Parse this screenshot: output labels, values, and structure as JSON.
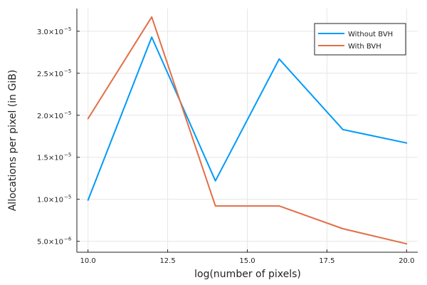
{
  "chart_data": {
    "type": "line",
    "title": "",
    "xlabel": "log(number of pixels)",
    "ylabel": "Allocations per pixel (in GiB)",
    "xlim": [
      9.65,
      20.35
    ],
    "ylim": [
      3.7e-06,
      3.27e-05
    ],
    "grid": true,
    "legend_position": "top-right",
    "x": [
      10,
      12,
      14,
      16,
      18,
      20
    ],
    "xticks": [
      {
        "value": 10.0,
        "label": "10.0"
      },
      {
        "value": 12.5,
        "label": "12.5"
      },
      {
        "value": 15.0,
        "label": "15.0"
      },
      {
        "value": 17.5,
        "label": "17.5"
      },
      {
        "value": 20.0,
        "label": "20.0"
      }
    ],
    "yticks": [
      {
        "value": 5e-06,
        "mantissa": "5.0×10",
        "exp": "−6"
      },
      {
        "value": 1e-05,
        "mantissa": "1.0×10",
        "exp": "−5"
      },
      {
        "value": 1.5e-05,
        "mantissa": "1.5×10",
        "exp": "−5"
      },
      {
        "value": 2e-05,
        "mantissa": "2.0×10",
        "exp": "−5"
      },
      {
        "value": 2.5e-05,
        "mantissa": "2.5×10",
        "exp": "−5"
      },
      {
        "value": 3e-05,
        "mantissa": "3.0×10",
        "exp": "−5"
      }
    ],
    "series": [
      {
        "name": "Without BVH",
        "color": "#009af9",
        "values": [
          9.9e-06,
          2.93e-05,
          1.22e-05,
          2.67e-05,
          1.83e-05,
          1.67e-05
        ]
      },
      {
        "name": "With BVH",
        "color": "#e26f46",
        "values": [
          1.96e-05,
          3.17e-05,
          9.2e-06,
          9.2e-06,
          6.5e-06,
          4.7e-06
        ]
      }
    ]
  }
}
